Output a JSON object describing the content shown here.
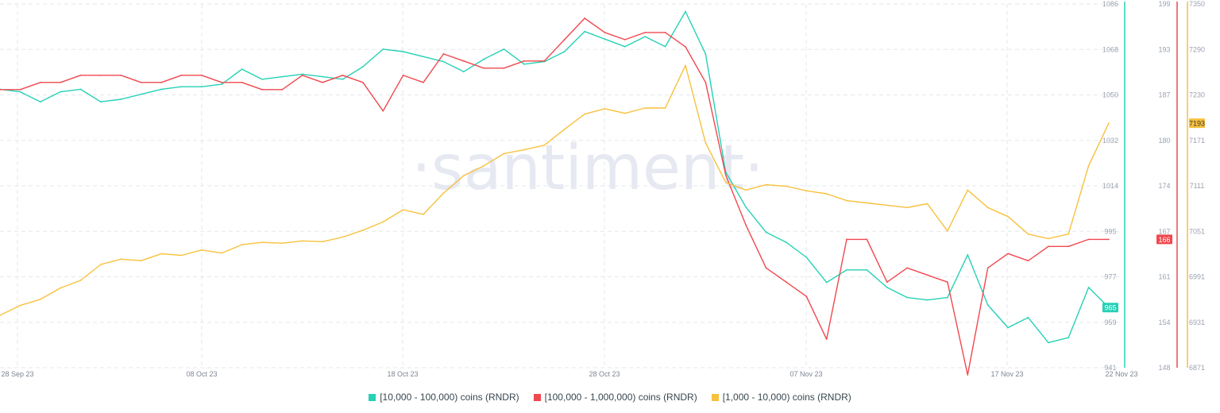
{
  "watermark": "·santiment·",
  "colors": {
    "series_a": "#26d1b5",
    "series_b": "#f0484e",
    "series_c": "#f7c13d",
    "grid": "#e3e7ee",
    "tick_text": "#9aa3b2"
  },
  "legend": [
    {
      "label": "[10,000 - 100,000) coins (RNDR)"
    },
    {
      "label": "[100,000  - 1,000,000) coins (RNDR)"
    },
    {
      "label": "[1,000 - 10,000) coins (RNDR)"
    }
  ],
  "chart_data": {
    "type": "line",
    "x_tick_labels": [
      "28 Sep 23",
      "08 Oct 23",
      "18 Oct 23",
      "28 Oct 23",
      "07 Nov 23",
      "17 Nov 23",
      "22 Nov 23"
    ],
    "axes": [
      {
        "series": "[10,000 - 100,000) coins (RNDR)",
        "range": [
          941,
          1086
        ],
        "ticks": [
          1086,
          1068,
          1050,
          1032,
          1014,
          995,
          977,
          959,
          941
        ],
        "last_value": "965"
      },
      {
        "series": "[100,000  - 1,000,000) coins (RNDR)",
        "range": [
          148,
          199
        ],
        "ticks": [
          199,
          193,
          187,
          180,
          174,
          167,
          161,
          154,
          148
        ],
        "last_value": "166"
      },
      {
        "series": "[1,000 - 10,000) coins (RNDR)",
        "range": [
          6871,
          7350
        ],
        "ticks": [
          7350,
          7290,
          7230,
          7171,
          7111,
          7051,
          6991,
          6931,
          6871
        ],
        "last_value": "7193"
      }
    ],
    "grid": true,
    "legend_position": "bottom",
    "series": [
      {
        "name": "[10,000 - 100,000) coins (RNDR)",
        "values": [
          1052,
          1051,
          1047,
          1051,
          1052,
          1047,
          1048,
          1050,
          1052,
          1053,
          1053,
          1054,
          1060,
          1056,
          1057,
          1058,
          1057,
          1056,
          1061,
          1068,
          1067,
          1065,
          1063,
          1059,
          1064,
          1068,
          1062,
          1063,
          1067,
          1075,
          1072,
          1069,
          1073,
          1069,
          1083,
          1066,
          1019,
          1005,
          995,
          991,
          985,
          975,
          980,
          980,
          973,
          969,
          968,
          969,
          986,
          966,
          957,
          961,
          951,
          953,
          973,
          965
        ]
      },
      {
        "name": "[100,000  - 1,000,000) coins (RNDR)",
        "values": [
          187,
          187,
          188,
          188,
          189,
          189,
          189,
          188,
          188,
          189,
          189,
          188,
          188,
          187,
          187,
          189,
          188,
          189,
          188,
          184,
          189,
          188,
          192,
          191,
          190,
          190,
          191,
          191,
          194,
          197,
          195,
          194,
          195,
          195,
          193,
          188,
          175,
          168,
          162,
          160,
          158,
          152,
          166,
          166,
          160,
          162,
          161,
          160,
          147,
          162,
          164,
          163,
          165,
          165,
          166,
          166
        ]
      },
      {
        "name": "[1,000 - 10,000) coins (RNDR)",
        "values": [
          6940,
          6953,
          6961,
          6976,
          6986,
          7007,
          7014,
          7012,
          7021,
          7019,
          7026,
          7022,
          7033,
          7036,
          7035,
          7038,
          7037,
          7043,
          7052,
          7063,
          7079,
          7073,
          7101,
          7124,
          7137,
          7153,
          7158,
          7164,
          7185,
          7205,
          7212,
          7206,
          7213,
          7213,
          7269,
          7167,
          7115,
          7105,
          7112,
          7110,
          7104,
          7100,
          7091,
          7088,
          7085,
          7082,
          7087,
          7051,
          7105,
          7082,
          7070,
          7047,
          7041,
          7047,
          7137,
          7193
        ]
      }
    ]
  }
}
